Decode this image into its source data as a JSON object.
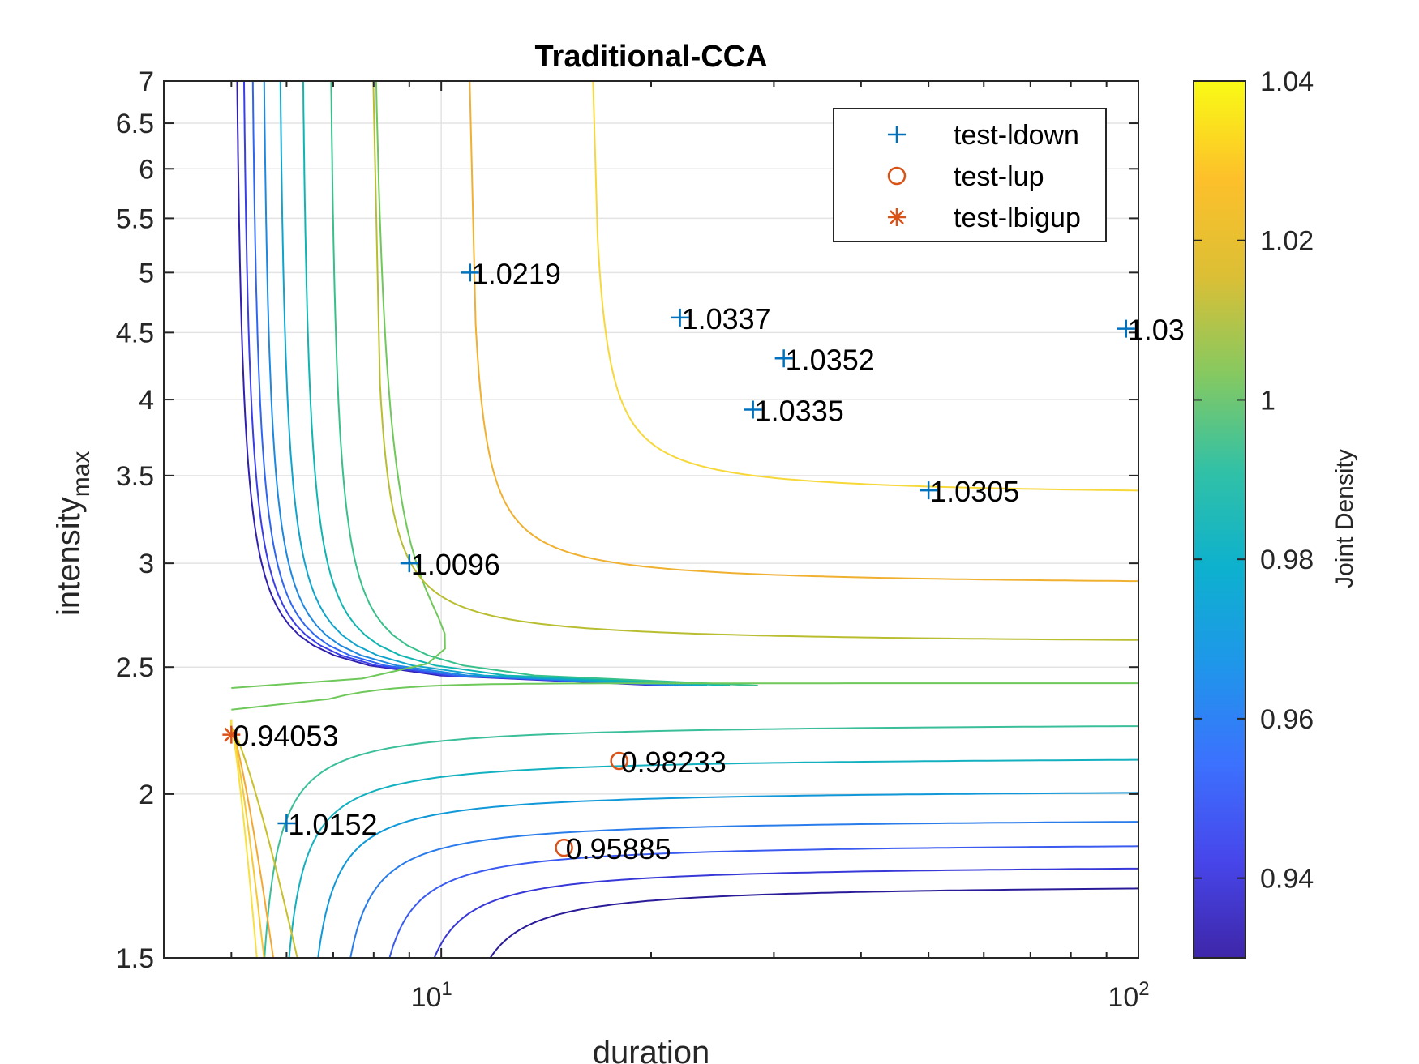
{
  "chart_data": {
    "type": "scatter",
    "title": "Traditional-CCA",
    "xlabel": "duration",
    "ylabel_main": "intensity",
    "ylabel_sub": "max",
    "x_scale": "log",
    "y_scale": "log",
    "xlim": [
      4,
      100
    ],
    "ylim": [
      1.5,
      7
    ],
    "grid": true,
    "x_ticks": [
      {
        "value": 10,
        "base": "10",
        "exp": "1"
      },
      {
        "value": 100,
        "base": "10",
        "exp": "2"
      }
    ],
    "y_ticks": [
      {
        "value": 1.5,
        "label": "1.5"
      },
      {
        "value": 2,
        "label": "2"
      },
      {
        "value": 2.5,
        "label": "2.5"
      },
      {
        "value": 3,
        "label": "3"
      },
      {
        "value": 3.5,
        "label": "3.5"
      },
      {
        "value": 4,
        "label": "4"
      },
      {
        "value": 4.5,
        "label": "4.5"
      },
      {
        "value": 5,
        "label": "5"
      },
      {
        "value": 5.5,
        "label": "5.5"
      },
      {
        "value": 6,
        "label": "6"
      },
      {
        "value": 6.5,
        "label": "6.5"
      },
      {
        "value": 7,
        "label": "7"
      }
    ],
    "legend_position": "top-right",
    "series": [
      {
        "name": "test-ldown",
        "marker": "plus",
        "color": "#0072BD",
        "points": [
          {
            "x": 11,
            "y": 5.0,
            "label": "1.0219"
          },
          {
            "x": 22,
            "y": 4.62,
            "label": "1.0337"
          },
          {
            "x": 31,
            "y": 4.3,
            "label": "1.0352"
          },
          {
            "x": 28,
            "y": 3.93,
            "label": "1.0335"
          },
          {
            "x": 50,
            "y": 3.41,
            "label": "1.0305"
          },
          {
            "x": 96,
            "y": 4.53,
            "label": "1.03"
          },
          {
            "x": 9.0,
            "y": 3.0,
            "label": "1.0096"
          },
          {
            "x": 6.0,
            "y": 1.9,
            "label": "1.0152"
          }
        ]
      },
      {
        "name": "test-lup",
        "marker": "circle",
        "color": "#D95319",
        "points": [
          {
            "x": 18,
            "y": 2.12,
            "label": "0.98233"
          },
          {
            "x": 15,
            "y": 1.82,
            "label": "0.95885"
          }
        ]
      },
      {
        "name": "test-lbigup",
        "marker": "asterisk",
        "color": "#D95319",
        "points": [
          {
            "x": 5.0,
            "y": 2.22,
            "label": "0.94053"
          }
        ]
      }
    ],
    "contour_levels": [
      {
        "mode": "v",
        "x": 4.985,
        "color": "#3020B0"
      },
      {
        "mode": "v",
        "x": 5.1,
        "color": "#3A3EE8"
      },
      {
        "mode": "v",
        "x": 5.25,
        "color": "#2F66F0"
      },
      {
        "mode": "v",
        "x": 5.45,
        "color": "#1E88E0"
      },
      {
        "mode": "v",
        "x": 5.75,
        "color": "#10A4CC"
      },
      {
        "mode": "v",
        "x": 6.2,
        "color": "#0FB5B0"
      },
      {
        "mode": "v",
        "x": 6.8,
        "color": "#38C08A"
      },
      {
        "mode": "lv",
        "x": 7.7,
        "y": 2.45,
        "color": "#6FC85A"
      },
      {
        "mode": "hy",
        "x": 7.8,
        "y": 2.6,
        "color": "#B8BE30"
      },
      {
        "mode": "hy",
        "x": 10.7,
        "y": 2.88,
        "color": "#F0B030"
      },
      {
        "mode": "hy",
        "x": 16.0,
        "y": 3.37,
        "color": "#F7D83A"
      },
      {
        "mode": "lh",
        "x": 5.0,
        "y": 2.43,
        "color": "#6FC85A"
      },
      {
        "mode": "h",
        "x": 5.3,
        "y": 2.27,
        "color": "#3ABF9A"
      },
      {
        "mode": "h",
        "x": 5.7,
        "y": 2.14,
        "color": "#13B0C0"
      },
      {
        "mode": "h",
        "x": 6.2,
        "y": 2.02,
        "color": "#1098D8"
      },
      {
        "mode": "h",
        "x": 6.8,
        "y": 1.92,
        "color": "#2A7CEA"
      },
      {
        "mode": "h",
        "x": 7.6,
        "y": 1.84,
        "color": "#3A5AF0"
      },
      {
        "mode": "h",
        "x": 8.6,
        "y": 1.77,
        "color": "#3838D8"
      },
      {
        "mode": "h",
        "x": 10.0,
        "y": 1.71,
        "color": "#2A1C98"
      },
      {
        "mode": "low",
        "x": 6.4,
        "color": "#C8C028"
      },
      {
        "mode": "low",
        "x": 5.85,
        "color": "#F4A830"
      },
      {
        "mode": "low",
        "x": 5.65,
        "color": "#F7C834"
      },
      {
        "mode": "low",
        "x": 5.5,
        "color": "#F8E040"
      }
    ],
    "colorbar": {
      "label": "Joint Density",
      "min": 0.93,
      "max": 1.04,
      "ticks": [
        {
          "value": 0.94,
          "label": "0.94"
        },
        {
          "value": 0.96,
          "label": "0.96"
        },
        {
          "value": 0.98,
          "label": "0.98"
        },
        {
          "value": 1.0,
          "label": "1"
        },
        {
          "value": 1.02,
          "label": "1.02"
        },
        {
          "value": 1.04,
          "label": "1.04"
        }
      ],
      "colors": [
        "#3E26A8",
        "#4746EB",
        "#3C71FE",
        "#1F96EA",
        "#0DB1CE",
        "#31C1A6",
        "#86C960",
        "#DCBF35",
        "#FDC02A",
        "#F9FB15"
      ]
    }
  }
}
